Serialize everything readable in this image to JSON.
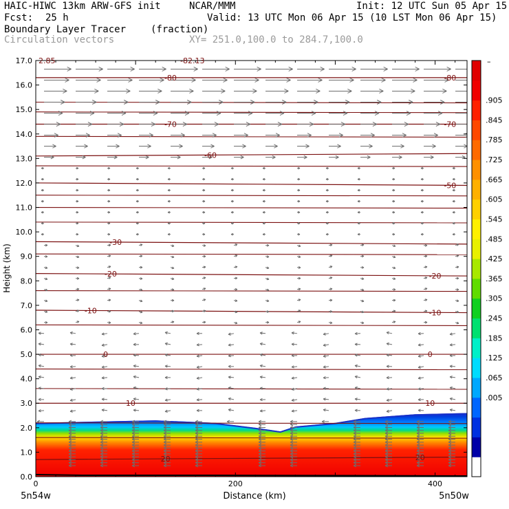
{
  "header": {
    "model": "HAIC-HIWC 13km ARW-GFS init",
    "org": "NCAR/MMM",
    "init": "Init: 12 UTC Sun 05 Apr 15",
    "fcst_label": "Fcst:",
    "fcst_value": "25 h",
    "valid": "Valid: 13 UTC Mon 06 Apr 15 (10 LST Mon 06 Apr 15)",
    "field1": "Boundary Layer Tracer",
    "field1_units": "(fraction)",
    "field2": "Circulation vectors",
    "xy": "XY= 251.0,100.0 to 284.7,100.0"
  },
  "chart_data": {
    "type": "heatmap",
    "xlabel": "Distance (km)",
    "ylabel": "Height (km)",
    "xlim": [
      0,
      432
    ],
    "ylim": [
      0,
      17
    ],
    "x_ticks": [
      0,
      200,
      400
    ],
    "y_ticks": [
      "0.0",
      "1.0",
      "2.0",
      "3.0",
      "4.0",
      "5.0",
      "6.0",
      "7.0",
      "8.0",
      "9.0",
      "10.0",
      "11.0",
      "12.0",
      "13.0",
      "14.0",
      "15.0",
      "16.0",
      "17.0"
    ],
    "x_endpoints": {
      "left": "5n54w",
      "right": "5n50w"
    },
    "top_clipped_labels": [
      "2.85",
      "-82.13"
    ],
    "tracer_top_km": [
      [
        0,
        2.2
      ],
      [
        60,
        2.25
      ],
      [
        120,
        2.3
      ],
      [
        180,
        2.2
      ],
      [
        220,
        2.0
      ],
      [
        245,
        1.85
      ],
      [
        260,
        2.05
      ],
      [
        300,
        2.2
      ],
      [
        330,
        2.4
      ],
      [
        380,
        2.55
      ],
      [
        432,
        2.6
      ]
    ],
    "temperature_contours": [
      {
        "label": "-80",
        "y": [
          16.3,
          16.3
        ]
      },
      {
        "label": "-70",
        "y": [
          14.4,
          14.4
        ]
      },
      {
        "label": "-60",
        "y": [
          13.1,
          13.2
        ]
      },
      {
        "label": "-50",
        "y": [
          12.0,
          11.9
        ]
      },
      {
        "label": "-30",
        "y": [
          9.6,
          9.5
        ]
      },
      {
        "label": "-20",
        "y": [
          8.3,
          8.2
        ]
      },
      {
        "label": "-10",
        "y": [
          6.8,
          6.7
        ]
      },
      {
        "label": "0",
        "y": [
          5.0,
          5.0
        ]
      },
      {
        "label": "10",
        "y": [
          3.0,
          3.0
        ]
      },
      {
        "label": "20",
        "y": [
          0.7,
          0.8
        ]
      }
    ],
    "contour_label_positions": {
      "-80": [
        135,
        415
      ],
      "-70": [
        135,
        415
      ],
      "-60": [
        175
      ],
      "-50": [
        415
      ],
      "-30": [
        80
      ],
      "-20": [
        75,
        400
      ],
      "-10": [
        55,
        400
      ],
      "0": [
        70,
        395
      ],
      "10": [
        95,
        395
      ],
      "20": [
        130,
        385
      ]
    },
    "colorbar": {
      "labels": [
        ".905",
        ".845",
        ".785",
        ".725",
        ".665",
        ".605",
        ".545",
        ".485",
        ".425",
        ".365",
        ".305",
        ".245",
        ".185",
        ".125",
        ".065",
        ".005"
      ],
      "top_mark": "–",
      "colors": [
        "#ffffff",
        "#0000a8",
        "#0030e0",
        "#0066ff",
        "#00a8ff",
        "#00dcff",
        "#00f0c8",
        "#00e070",
        "#10d020",
        "#60dc00",
        "#a8e800",
        "#e8f000",
        "#fff000",
        "#ffd000",
        "#ffb000",
        "#ff9000",
        "#ff6a00",
        "#ff4800",
        "#ff2000",
        "#f00000",
        "#e00000"
      ]
    },
    "vectors_note": "Circulation vectors"
  }
}
